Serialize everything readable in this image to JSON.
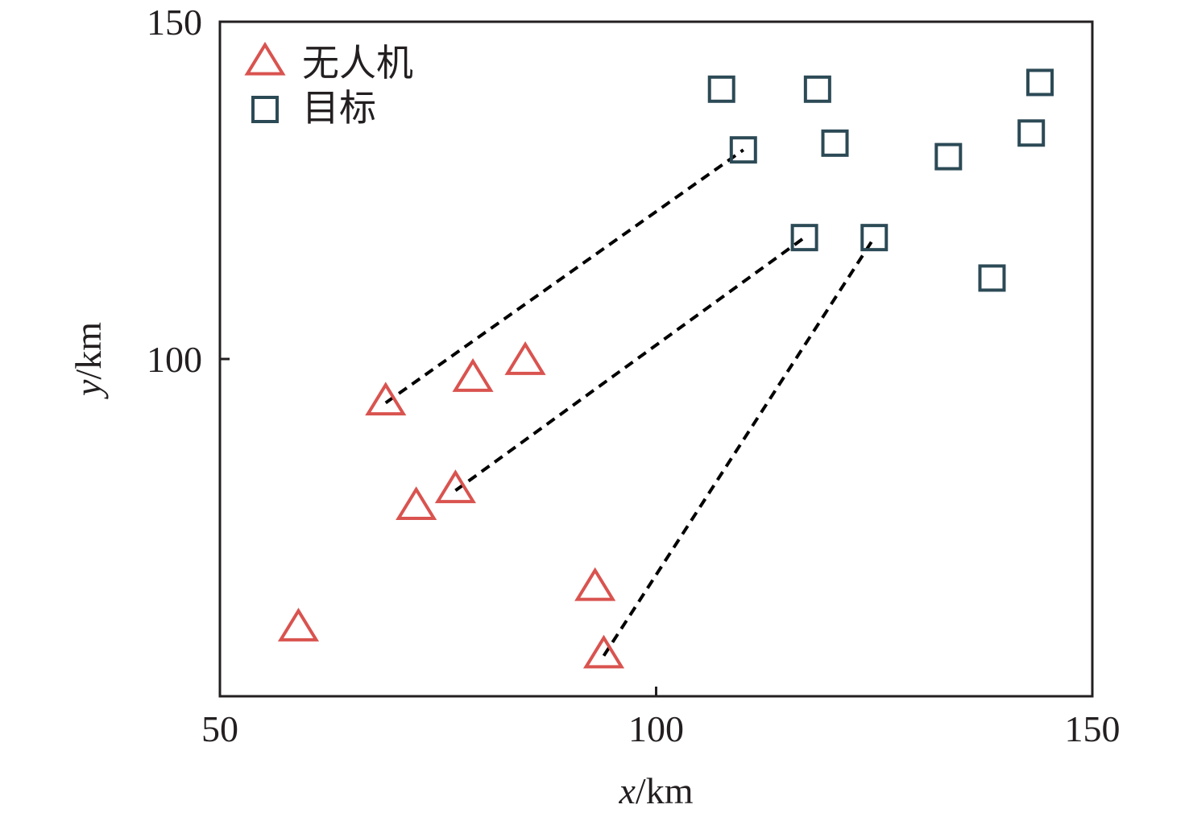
{
  "chart_data": {
    "type": "scatter",
    "xlabel_var": "x",
    "xlabel_unit": "/km",
    "ylabel_var": "y",
    "ylabel_unit": "/km",
    "xlim": [
      50,
      150
    ],
    "ylim": [
      50,
      150
    ],
    "xticks": [
      50,
      100,
      150
    ],
    "yticks": [
      100,
      150
    ],
    "grid": false,
    "legend_position": "top-left",
    "series": [
      {
        "name": "无人机",
        "marker": "triangle",
        "color": "#d9534f",
        "points": [
          [
            69,
            93.5
          ],
          [
            79,
            97
          ],
          [
            85,
            99.5
          ],
          [
            72.5,
            78
          ],
          [
            77,
            80.5
          ],
          [
            59,
            60
          ],
          [
            93,
            66
          ],
          [
            94,
            56
          ]
        ]
      },
      {
        "name": "目标",
        "marker": "square",
        "color": "#2c4a56",
        "points": [
          [
            107.5,
            140
          ],
          [
            118.5,
            140
          ],
          [
            144,
            141
          ],
          [
            110,
            131
          ],
          [
            120.5,
            132
          ],
          [
            133.5,
            130
          ],
          [
            143,
            133.5
          ],
          [
            117,
            118
          ],
          [
            125,
            118
          ],
          [
            138.5,
            112
          ]
        ]
      }
    ],
    "assignments": [
      {
        "from": [
          69,
          93.5
        ],
        "to": [
          110,
          131
        ]
      },
      {
        "from": [
          77,
          80.5
        ],
        "to": [
          117,
          118
        ]
      },
      {
        "from": [
          94,
          56
        ],
        "to": [
          125,
          118
        ]
      }
    ]
  }
}
